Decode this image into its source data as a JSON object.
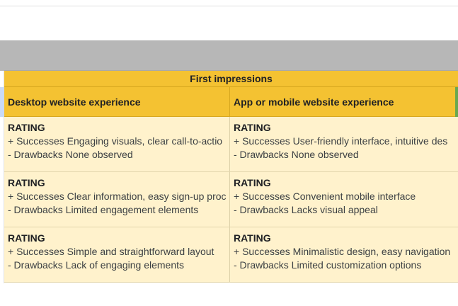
{
  "table": {
    "title": "First impressions",
    "headers": [
      "Desktop website experience",
      "App or mobile website experience"
    ],
    "rows": [
      {
        "desktop": {
          "rating": "RATING",
          "successes": "+ Successes Engaging visuals, clear call-to-actio",
          "drawbacks": "- Drawbacks  None observed"
        },
        "mobile": {
          "rating": "RATING",
          "successes": "+ Successes User-friendly interface, intuitive des",
          "drawbacks": "- Drawbacks None observed"
        }
      },
      {
        "desktop": {
          "rating": "RATING",
          "successes": "+ Successes Clear information, easy sign-up proc",
          "drawbacks": "- Drawbacks Limited engagement elements"
        },
        "mobile": {
          "rating": "RATING",
          "successes": "+ Successes Convenient mobile interface",
          "drawbacks": "- Drawbacks Lacks visual appeal"
        }
      },
      {
        "desktop": {
          "rating": "RATING",
          "successes": "+ Successes Simple and straightforward layout",
          "drawbacks": "- Drawbacks Lack of engaging elements"
        },
        "mobile": {
          "rating": "RATING",
          "successes": "+ Successes Minimalistic design, easy navigation",
          "drawbacks": "- Drawbacks Limited customization options"
        }
      }
    ]
  },
  "colors": {
    "header_yellow": "#f4c232",
    "cell_cream": "#fff2cc",
    "band_grey": "#b7b7b7",
    "edge_green": "#6aa84f",
    "gutter_blue": "#c9daf8"
  }
}
